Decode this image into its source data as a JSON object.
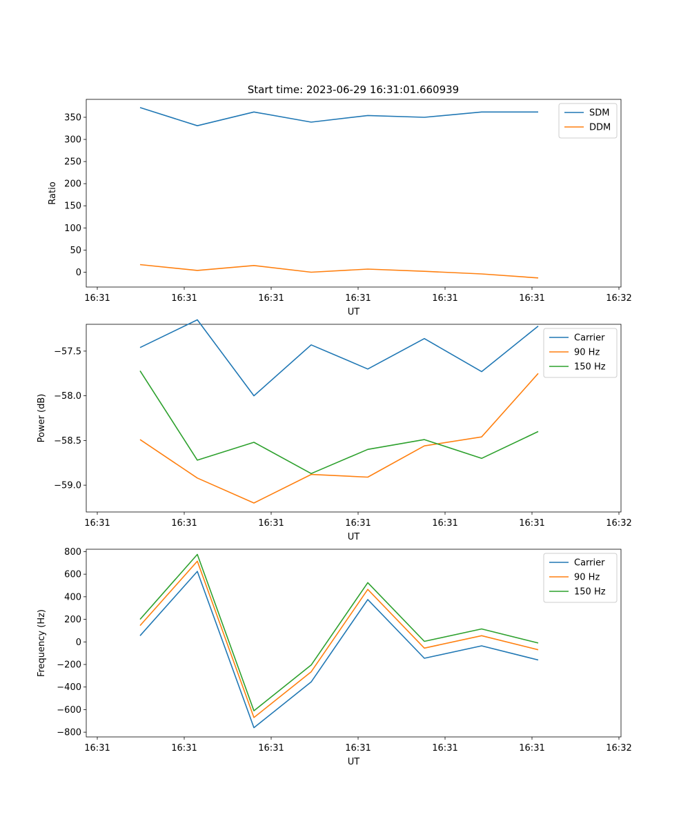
{
  "figure_title": "Start time: 2023-06-29 16:31:01.660939",
  "chart_data": [
    {
      "type": "line",
      "xlabel": "UT",
      "ylabel": "Ratio",
      "x_tick_labels": [
        "16:31",
        "16:31",
        "16:31",
        "16:31",
        "16:31",
        "16:31",
        "16:32"
      ],
      "y_ticks": [
        0,
        50,
        100,
        150,
        200,
        250,
        300,
        350
      ],
      "y_tick_labels": [
        "0",
        "50",
        "100",
        "150",
        "200",
        "250",
        "300",
        "350"
      ],
      "ylim": [
        -33.6,
        390.5
      ],
      "x": [
        0,
        1,
        2,
        3,
        4,
        5,
        6,
        7
      ],
      "series": [
        {
          "name": "SDM",
          "color": "#1f77b4",
          "values": [
            372,
            331,
            362,
            339,
            354,
            350,
            362,
            362
          ]
        },
        {
          "name": "DDM",
          "color": "#ff7f0e",
          "values": [
            17,
            4,
            15,
            0,
            7,
            2,
            -4,
            -13
          ]
        }
      ],
      "legend": "upper right",
      "grid": false
    },
    {
      "type": "line",
      "xlabel": "UT",
      "ylabel": "Power (dB)",
      "x_tick_labels": [
        "16:31",
        "16:31",
        "16:31",
        "16:31",
        "16:31",
        "16:31",
        "16:32"
      ],
      "y_ticks": [
        -59.0,
        -58.5,
        -58.0,
        -57.5
      ],
      "y_tick_labels": [
        "−59.0",
        "−58.5",
        "−58.0",
        "−57.5"
      ],
      "ylim": [
        -59.3,
        -57.2
      ],
      "x": [
        0,
        1,
        2,
        3,
        4,
        5,
        6,
        7
      ],
      "series": [
        {
          "name": "Carrier",
          "color": "#1f77b4",
          "values": [
            -57.46,
            -57.15,
            -58.0,
            -57.43,
            -57.7,
            -57.36,
            -57.73,
            -57.22
          ]
        },
        {
          "name": "90 Hz",
          "color": "#ff7f0e",
          "values": [
            -58.49,
            -58.92,
            -59.2,
            -58.88,
            -58.91,
            -58.56,
            -58.46,
            -57.75
          ]
        },
        {
          "name": "150 Hz",
          "color": "#2ca02c",
          "values": [
            -57.72,
            -58.72,
            -58.52,
            -58.87,
            -58.6,
            -58.49,
            -58.7,
            -58.4
          ]
        }
      ],
      "legend": "upper right",
      "grid": false
    },
    {
      "type": "line",
      "xlabel": "UT",
      "ylabel": "Frequency (Hz)",
      "x_tick_labels": [
        "16:31",
        "16:31",
        "16:31",
        "16:31",
        "16:31",
        "16:31",
        "16:32"
      ],
      "y_ticks": [
        -800,
        -600,
        -400,
        -200,
        0,
        200,
        400,
        600,
        800
      ],
      "y_tick_labels": [
        "−800",
        "−600",
        "−400",
        "−200",
        "0",
        "200",
        "400",
        "600",
        "800"
      ],
      "ylim": [
        -842,
        821
      ],
      "x": [
        0,
        1,
        2,
        3,
        4,
        5,
        6,
        7
      ],
      "series": [
        {
          "name": "Carrier",
          "color": "#1f77b4",
          "values": [
            55,
            625,
            -760,
            -355,
            375,
            -145,
            -35,
            -160
          ]
        },
        {
          "name": "90 Hz",
          "color": "#ff7f0e",
          "values": [
            145,
            715,
            -670,
            -265,
            465,
            -55,
            55,
            -70
          ]
        },
        {
          "name": "150 Hz",
          "color": "#2ca02c",
          "values": [
            200,
            775,
            -610,
            -205,
            525,
            5,
            115,
            -10
          ]
        }
      ],
      "legend": "upper right",
      "grid": false
    }
  ]
}
